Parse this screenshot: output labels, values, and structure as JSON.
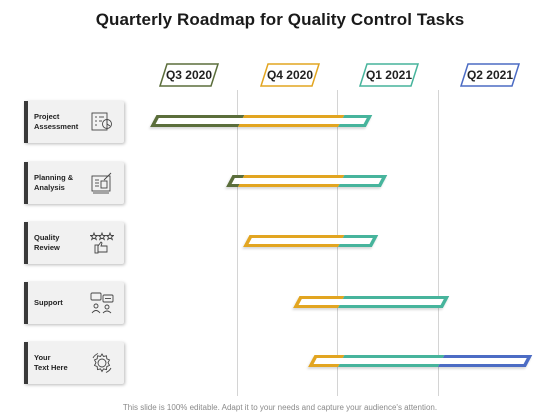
{
  "title": "Quarterly Roadmap for Quality Control Tasks",
  "footer": "This slide is 100% editable. Adapt it to your needs and capture your audience's attention.",
  "quarters": [
    {
      "label": "Q3 2020",
      "color": "#5b6e3b"
    },
    {
      "label": "Q4 2020",
      "color": "#e2a521"
    },
    {
      "label": "Q1 2021",
      "color": "#47b49c"
    },
    {
      "label": "Q2 2021",
      "color": "#4c6cc4"
    }
  ],
  "tasks": [
    {
      "label_line1": "Project",
      "label_line2": "Assessment",
      "icon": "report-icon"
    },
    {
      "label_line1": "Planning &",
      "label_line2": "Analysis",
      "icon": "planning-board-icon"
    },
    {
      "label_line1": "Quality",
      "label_line2": "Review",
      "icon": "thumbs-up-stars-icon"
    },
    {
      "label_line1": "Support",
      "label_line2": "",
      "icon": "chat-people-icon"
    },
    {
      "label_line1": "Your",
      "label_line2": "Text Here",
      "icon": "gear-icon"
    }
  ],
  "colors": {
    "olive": "#5b6e3b",
    "orange": "#e2a521",
    "teal": "#47b49c",
    "blue": "#4c6cc4",
    "card": "#f1f1f1",
    "accent": "#3a3a3a"
  }
}
